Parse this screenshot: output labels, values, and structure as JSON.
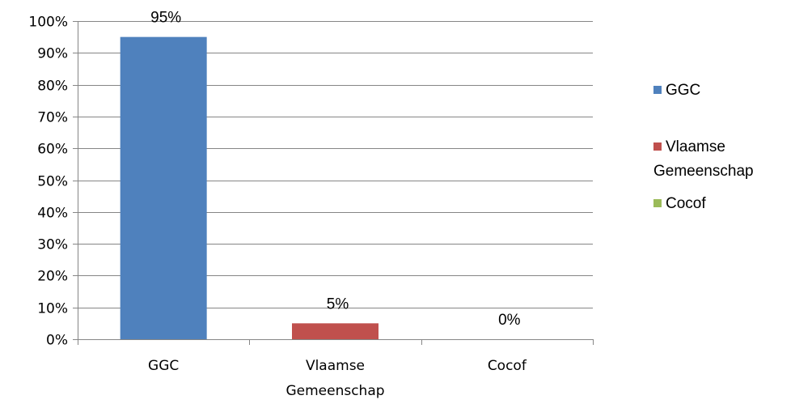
{
  "chart_data": {
    "type": "bar",
    "categories": [
      "GGC",
      "Vlaamse Gemeenschap",
      "Cocof"
    ],
    "category_lines": [
      [
        "GGC"
      ],
      [
        "Vlaamse",
        "Gemeenschap"
      ],
      [
        "Cocof"
      ]
    ],
    "values": [
      95,
      5,
      0
    ],
    "data_labels": [
      "95%",
      "5%",
      "0%"
    ],
    "colors": [
      "#4f81bd",
      "#c0504d",
      "#9bbb59"
    ],
    "ylim": [
      0,
      100
    ],
    "yticks": [
      0,
      10,
      20,
      30,
      40,
      50,
      60,
      70,
      80,
      90,
      100
    ],
    "ytick_labels": [
      "0%",
      "10%",
      "20%",
      "30%",
      "40%",
      "50%",
      "60%",
      "70%",
      "80%",
      "90%",
      "100%"
    ],
    "grid": true,
    "legend_position": "right",
    "legend": [
      {
        "lines": [
          "GGC"
        ],
        "color": "#4f81bd"
      },
      {
        "lines": [
          "Vlaamse",
          "Gemeenschap"
        ],
        "color": "#c0504d"
      },
      {
        "lines": [
          "Cocof"
        ],
        "color": "#9bbb59"
      }
    ]
  }
}
